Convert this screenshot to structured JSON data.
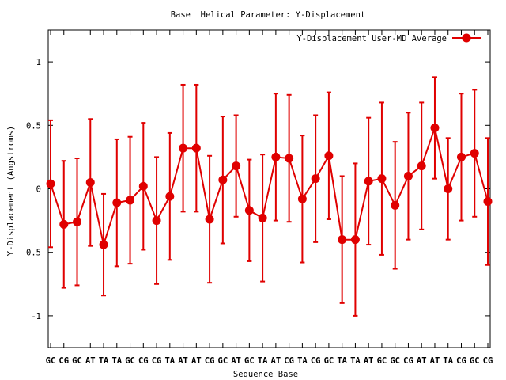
{
  "chart_data": {
    "type": "line",
    "title": "Base  Helical Parameter: Y-Displacement",
    "xlabel": "Sequence Base",
    "ylabel": "Y-Displacement (Angstroms)",
    "ylim": [
      -1.25,
      1.25
    ],
    "yticks": [
      -1,
      -0.5,
      0,
      0.5,
      1
    ],
    "ytick_labels": [
      "-1",
      "-0.5",
      "0",
      "0.5",
      "1"
    ],
    "grid": false,
    "legend_position": "top-right",
    "colors": {
      "series": "#e00000",
      "axes": "#000000"
    },
    "categories": [
      "GC",
      "CG",
      "GC",
      "AT",
      "TA",
      "TA",
      "GC",
      "CG",
      "CG",
      "TA",
      "AT",
      "AT",
      "CG",
      "GC",
      "AT",
      "GC",
      "TA",
      "AT",
      "CG",
      "TA",
      "CG",
      "GC",
      "TA",
      "TA",
      "AT",
      "GC",
      "GC",
      "CG",
      "AT",
      "AT",
      "TA",
      "CG",
      "GC",
      "CG"
    ],
    "series": [
      {
        "name": "Y-Displacement User-MD Average",
        "values": [
          0.04,
          -0.28,
          -0.26,
          0.05,
          -0.44,
          -0.11,
          -0.09,
          0.02,
          -0.25,
          -0.06,
          0.32,
          0.32,
          -0.24,
          0.07,
          0.18,
          -0.17,
          -0.23,
          0.25,
          0.24,
          -0.08,
          0.08,
          0.26,
          -0.4,
          -0.4,
          0.06,
          0.08,
          -0.13,
          0.1,
          0.18,
          0.48,
          0.0,
          0.25,
          0.28,
          -0.1
        ],
        "errors": [
          0.5,
          0.5,
          0.5,
          0.5,
          0.4,
          0.5,
          0.5,
          0.5,
          0.5,
          0.5,
          0.5,
          0.5,
          0.5,
          0.5,
          0.4,
          0.4,
          0.5,
          0.5,
          0.5,
          0.5,
          0.5,
          0.5,
          0.5,
          0.6,
          0.5,
          0.6,
          0.5,
          0.5,
          0.5,
          0.4,
          0.4,
          0.5,
          0.5,
          0.5
        ]
      }
    ]
  }
}
